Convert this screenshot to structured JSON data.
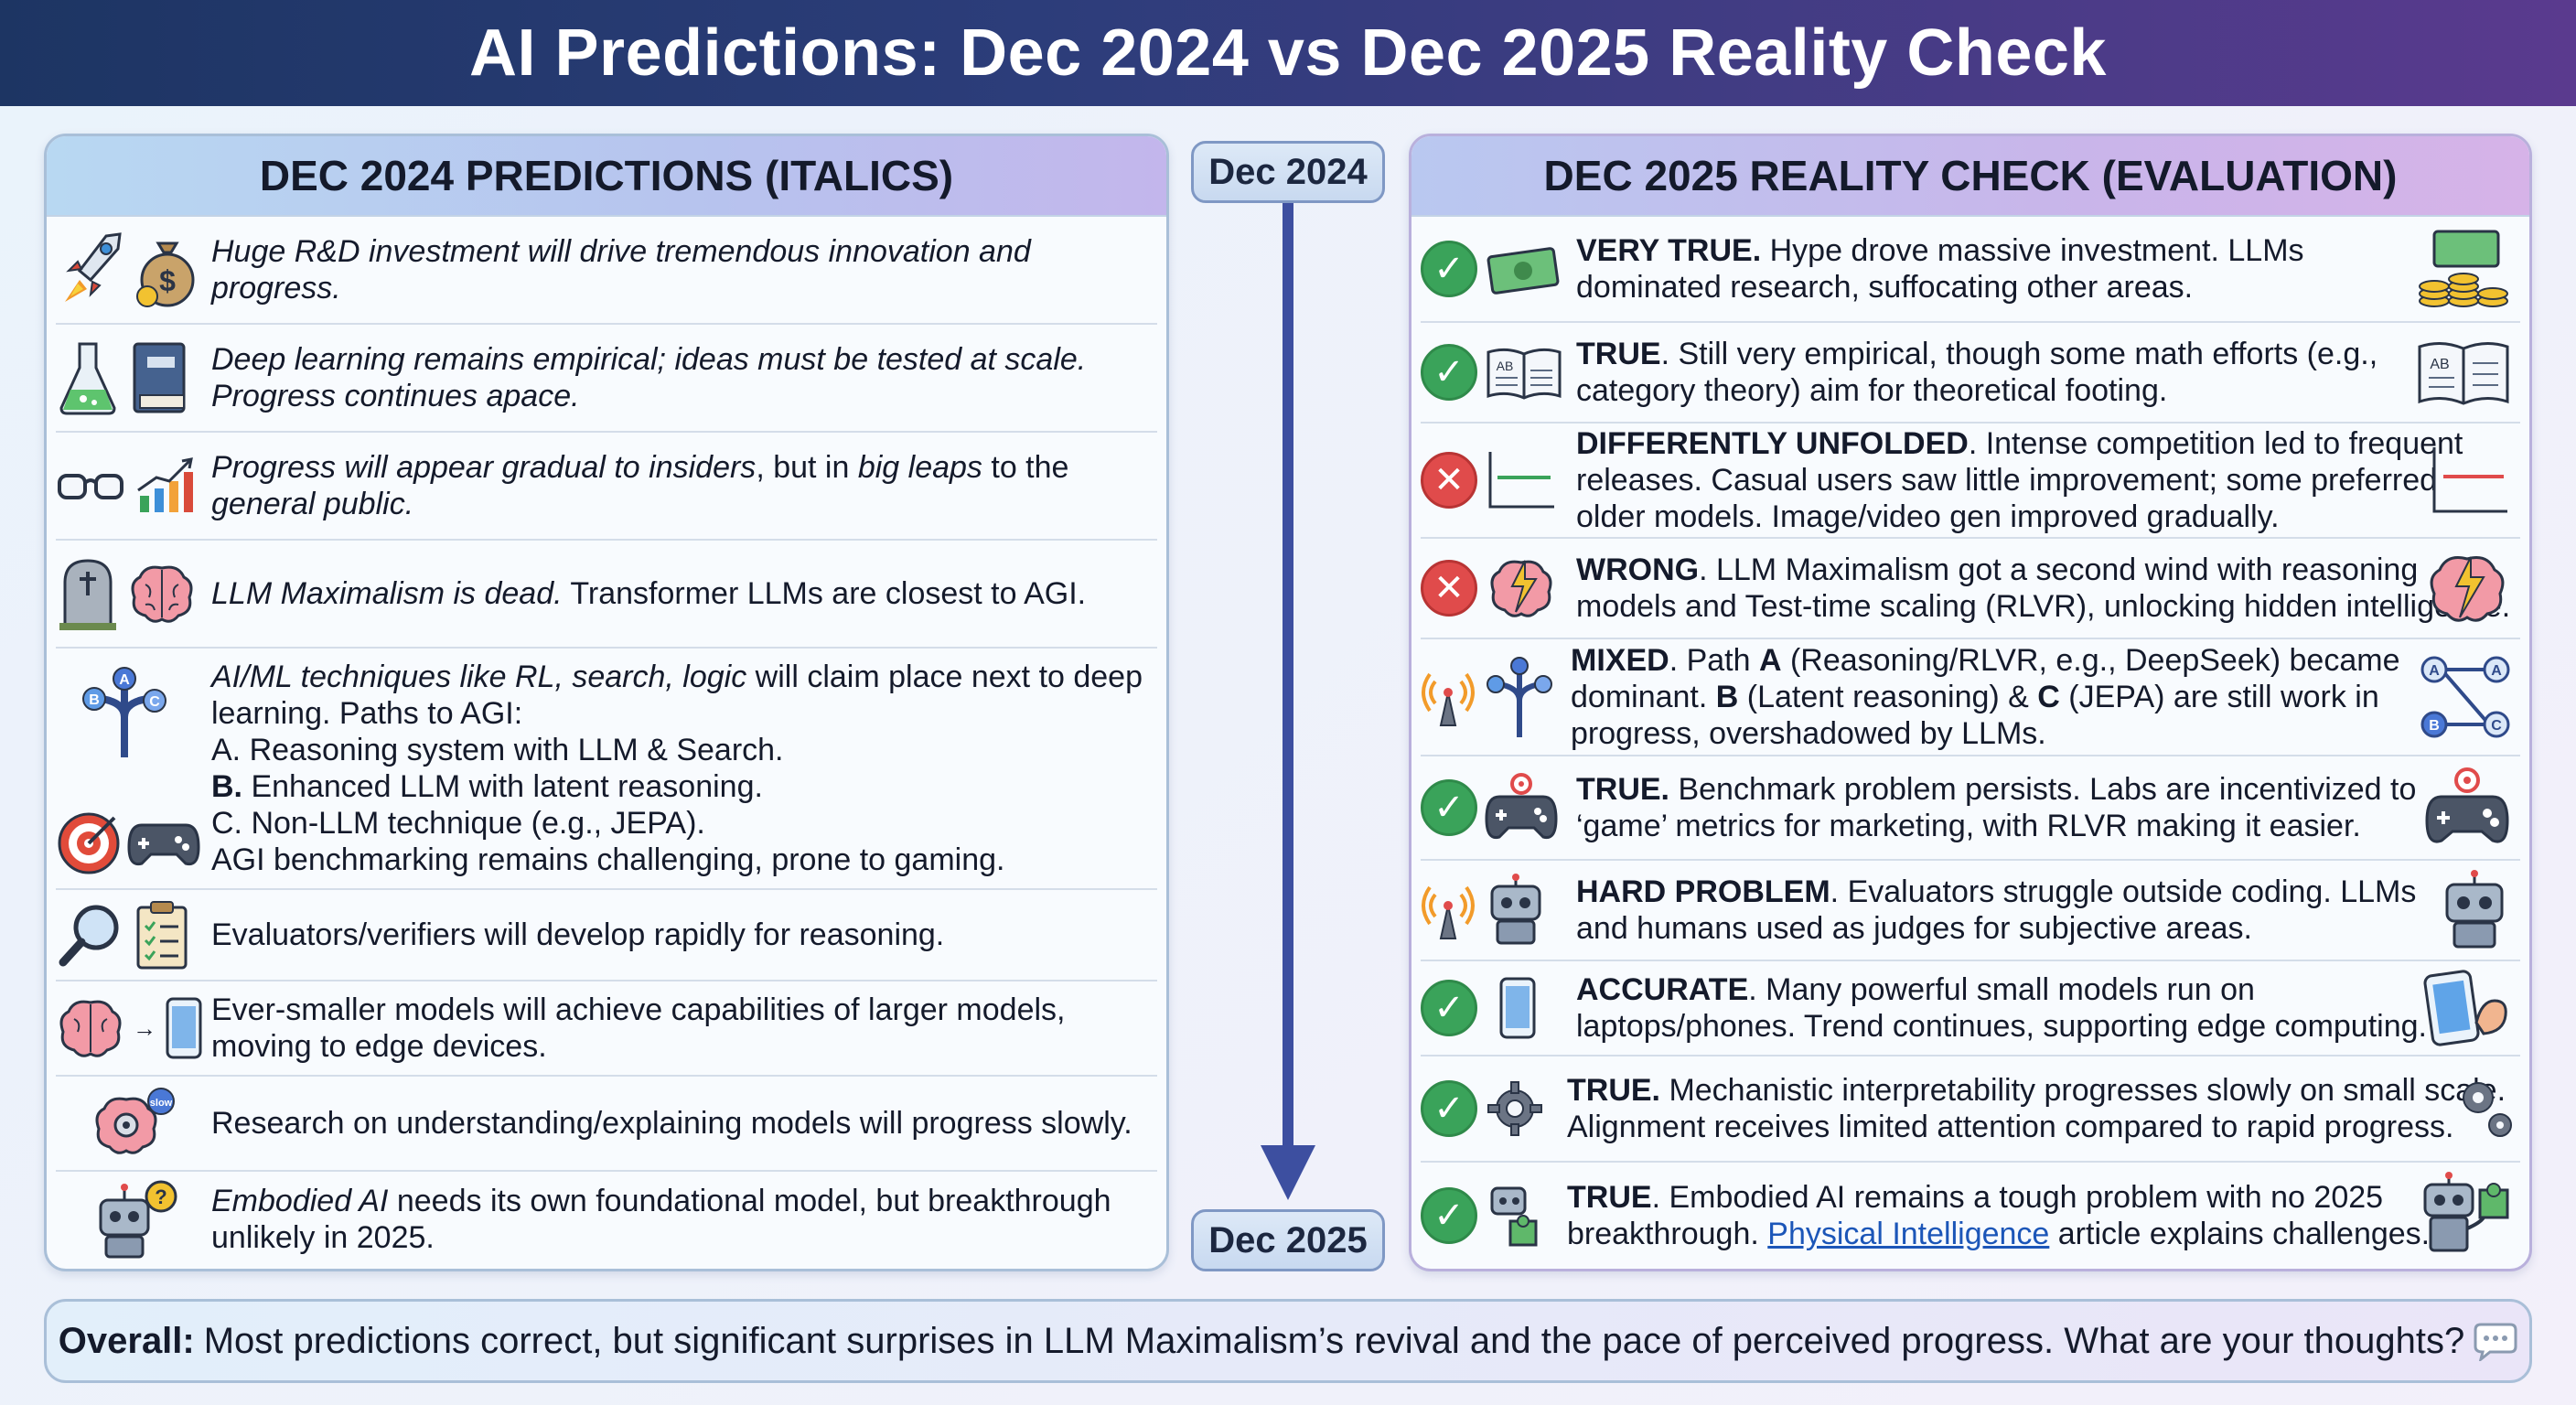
{
  "title": "AI Predictions: Dec 2024 vs Dec 2025 Reality Check",
  "left_header": "DEC 2024 PREDICTIONS (ITALICS)",
  "right_header": "DEC 2025 REALITY CHECK (EVALUATION)",
  "timeline": {
    "start": "Dec 2024",
    "end": "Dec 2025"
  },
  "predictions": [
    {
      "italic": "Huge R&D investment will drive tremendous innovation and progress.",
      "icons": [
        "rocket-icon",
        "money-bag-icon"
      ]
    },
    {
      "italic1": "Deep learning remains empirical; ideas must be tested at scale.",
      "italic2": "Progress continues apace.",
      "icons": [
        "flask-icon",
        "book-icon"
      ]
    },
    {
      "i1": "Progress will appear gradual to insiders",
      "t1": ", but in ",
      "i2": "big leaps",
      "t2": " to the",
      "i3": "general public.",
      "icons": [
        "glasses-icon",
        "growth-chart-icon"
      ]
    },
    {
      "i1": "LLM Maximalism is dead.",
      "t1": " Transformer LLMs are closest to AGI.",
      "icons": [
        "tombstone-icon",
        "brain-icon"
      ]
    },
    {
      "i1": "AI/ML techniques like RL, search, logic",
      "t1": " will claim place next to deep",
      "l2": "learning. Paths to AGI:",
      "l3": "A. Reasoning system with LLM & Search.",
      "l4b": "B.",
      "l4": " Enhanced LLM with latent reasoning.",
      "l5": "C. Non-LLM technique (e.g., JEPA).",
      "l6": "AGI benchmarking remains challenging, prone to gaming.",
      "icons": [
        "path-tree-icon",
        "target-icon",
        "gamepad-icon"
      ]
    },
    {
      "text": "Evaluators/verifiers will develop rapidly for reasoning.",
      "icons": [
        "magnifier-icon",
        "checklist-icon"
      ]
    },
    {
      "l1": "Ever-smaller models will achieve capabilities of larger models,",
      "l2": "moving to edge devices.",
      "icons": [
        "brain-icon",
        "phone-icon"
      ]
    },
    {
      "text": "Research on understanding/explaining models will progress slowly.",
      "badge": "slow",
      "icons": [
        "brain-gear-icon"
      ]
    },
    {
      "i1": "Embodied AI",
      "t1": " needs its own foundational model, but breakthrough",
      "l2": "unlikely in 2025.",
      "icons": [
        "robot-question-icon"
      ]
    }
  ],
  "evaluations": [
    {
      "status": "check",
      "verdict": "VERY TRUE.",
      "t1": " Hype drove massive investment. LLMs",
      "l2": "dominated research, suffocating other areas.",
      "icons": [
        "cash-icon",
        "gold-coins-icon"
      ]
    },
    {
      "status": "check",
      "verdict": "TRUE",
      "t1": ". Still very empirical, though some math efforts (e.g.,",
      "l2": "category theory) aim for theoretical footing.",
      "icons": [
        "open-book-icon",
        "open-book-icon"
      ]
    },
    {
      "status": "cross",
      "verdict": "DIFFERENTLY UNFOLDED",
      "t1": ". Intense competition led to frequent",
      "l2": "releases. Casual users saw little improvement; some preferred",
      "l3": "older models. Image/video gen improved gradually.",
      "icons": [
        "flat-line-green-icon",
        "flat-line-red-icon"
      ]
    },
    {
      "status": "cross",
      "verdict": "WRONG",
      "t1": ". LLM Maximalism got a second wind with reasoning",
      "l2": "models and Test-time scaling (RLVR), unlocking hidden intelligence.",
      "icons": [
        "brain-lightning-icon",
        "brain-lightning-icon"
      ]
    },
    {
      "status": "mixed",
      "verdict": "MIXED",
      "t1": ". Path ",
      "a": "A",
      "t2": " (Reasoning/RLVR, e.g., DeepSeek) became",
      "l2b": "dominant. ",
      "b": "B",
      "t3": " (Latent reasoning) & ",
      "c": "C",
      "t4": " (JEPA) are still work in",
      "l3": "progress, overshadowed by LLMs.",
      "icons": [
        "signal-icon",
        "path-tree-icon",
        "path-diagram-icon"
      ]
    },
    {
      "status": "check",
      "verdict": "TRUE.",
      "t1": " Benchmark problem persists. Labs are incentivized to",
      "l2": "‘game’ metrics for marketing, with RLVR making it easier.",
      "icons": [
        "gamepad-target-icon",
        "gamepad-target-icon"
      ]
    },
    {
      "status": "mixed",
      "verdict": "HARD PROBLEM",
      "t1": ". Evaluators struggle outside coding. LLMs",
      "l2": "and humans used as judges for subjective areas.",
      "icons": [
        "signal-icon",
        "robot-icon",
        "robot-icon"
      ]
    },
    {
      "status": "check",
      "verdict": "ACCURATE",
      "t1": ". Many powerful small models run on",
      "l2": "laptops/phones. Trend continues, supporting edge computing.",
      "icons": [
        "phone-icon",
        "strong-phone-icon"
      ]
    },
    {
      "status": "check",
      "verdict": "TRUE.",
      "t1": " Mechanistic interpretability progresses slowly on small scale.",
      "l2": "Alignment receives limited attention compared to rapid progress.",
      "icons": [
        "gear-icon",
        "gears-icon"
      ]
    },
    {
      "status": "check",
      "verdict": "TRUE",
      "t1": ". Embodied AI remains a tough problem with no 2025",
      "l2": "breakthrough. ",
      "link": "Physical Intelligence",
      "t2": " article explains challenges.",
      "icons": [
        "robot-puzzle-icon",
        "robot-puzzle-icon"
      ]
    }
  ],
  "footer": {
    "label": "Overall:",
    "text": "Most predictions correct, but significant surprises in LLM Maximalism’s revival and the pace of perceived progress. What are your thoughts?"
  },
  "colors": {
    "check": "#3aa35a",
    "cross": "#e04b4b",
    "timeline": "#3d4fa0"
  }
}
